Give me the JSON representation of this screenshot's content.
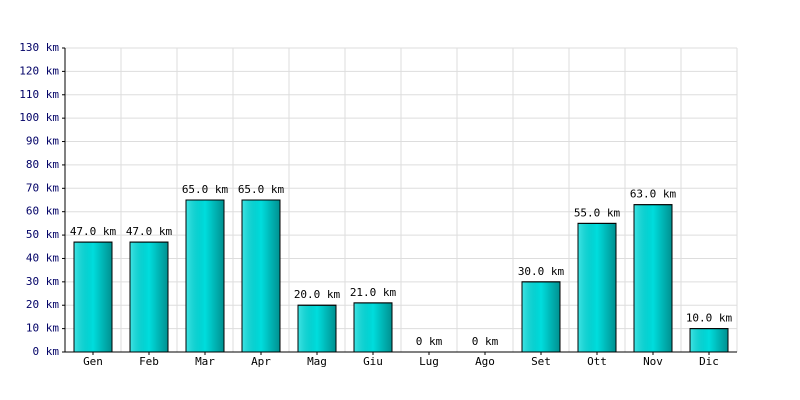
{
  "chart_data": {
    "type": "bar",
    "categories": [
      "Gen",
      "Feb",
      "Mar",
      "Apr",
      "Mag",
      "Giu",
      "Lug",
      "Ago",
      "Set",
      "Ott",
      "Nov",
      "Dic"
    ],
    "values": [
      47,
      47,
      65,
      65,
      20,
      21,
      0,
      0,
      30,
      55,
      63,
      10
    ],
    "value_labels": [
      "47.0 km",
      "47.0 km",
      "65.0 km",
      "65.0 km",
      "20.0 km",
      "21.0 km",
      "0 km",
      "0 km",
      "30.0 km",
      "55.0 km",
      "63.0 km",
      "10.0 km"
    ],
    "color": "#00dddd",
    "ylim": [
      0,
      130
    ],
    "yticks": [
      {
        "value": 0,
        "label": "0 km"
      },
      {
        "value": 10,
        "label": "10 km"
      },
      {
        "value": 20,
        "label": "20 km"
      },
      {
        "value": 30,
        "label": "30 km"
      },
      {
        "value": 40,
        "label": "40 km"
      },
      {
        "value": 50,
        "label": "50 km"
      },
      {
        "value": 60,
        "label": "60 km"
      },
      {
        "value": 70,
        "label": "70 km"
      },
      {
        "value": 80,
        "label": "80 km"
      },
      {
        "value": 90,
        "label": "90 km"
      },
      {
        "value": 100,
        "label": "100 km"
      },
      {
        "value": 110,
        "label": "110 km"
      },
      {
        "value": 120,
        "label": "120 km"
      },
      {
        "value": 130,
        "label": "130 km"
      }
    ],
    "grid": true
  }
}
